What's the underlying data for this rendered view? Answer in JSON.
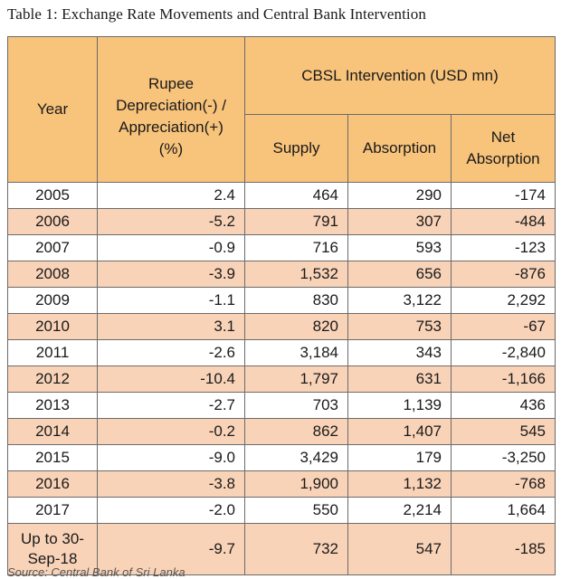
{
  "caption": "Table 1: Exchange Rate Movements and Central Bank Intervention",
  "header": {
    "year": "Year",
    "rupee_line1": "Rupee",
    "rupee_line2": "Depreciation(-) /",
    "rupee_line3": "Appreciation(+)",
    "rupee_line4": "(%)",
    "cbsl": "CBSL Intervention  (USD mn)",
    "supply": "Supply",
    "absorption": "Absorption",
    "net_line1": "Net",
    "net_line2": "Absorption"
  },
  "rows": [
    {
      "year": "2005",
      "change": "2.4",
      "supply": "464",
      "absorption": "290",
      "net": "-174"
    },
    {
      "year": "2006",
      "change": "-5.2",
      "supply": "791",
      "absorption": "307",
      "net": "-484"
    },
    {
      "year": "2007",
      "change": "-0.9",
      "supply": "716",
      "absorption": "593",
      "net": "-123"
    },
    {
      "year": "2008",
      "change": "-3.9",
      "supply": "1,532",
      "absorption": "656",
      "net": "-876"
    },
    {
      "year": "2009",
      "change": "-1.1",
      "supply": "830",
      "absorption": "3,122",
      "net": "2,292"
    },
    {
      "year": "2010",
      "change": "3.1",
      "supply": "820",
      "absorption": "753",
      "net": "-67"
    },
    {
      "year": "2011",
      "change": "-2.6",
      "supply": "3,184",
      "absorption": "343",
      "net": "-2,840"
    },
    {
      "year": "2012",
      "change": "-10.4",
      "supply": "1,797",
      "absorption": "631",
      "net": "-1,166"
    },
    {
      "year": "2013",
      "change": "-2.7",
      "supply": "703",
      "absorption": "1,139",
      "net": "436"
    },
    {
      "year": "2014",
      "change": "-0.2",
      "supply": "862",
      "absorption": "1,407",
      "net": "545"
    },
    {
      "year": "2015",
      "change": "-9.0",
      "supply": "3,429",
      "absorption": "179",
      "net": "-3,250"
    },
    {
      "year": "2016",
      "change": "-3.8",
      "supply": "1,900",
      "absorption": "1,132",
      "net": "-768"
    },
    {
      "year": "2017",
      "change": "-2.0",
      "supply": "550",
      "absorption": "2,214",
      "net": "1,664"
    }
  ],
  "last_row": {
    "year_line1": "Up to 30-",
    "year_line2": "Sep-18",
    "change": "-9.7",
    "supply": "732",
    "absorption": "547",
    "net": "-185"
  },
  "source": "Source: Central Bank of Sri Lanka",
  "colors": {
    "header": "#f8c37b",
    "shaded_row": "#f9d3b8",
    "border": "#6b6b6b"
  }
}
